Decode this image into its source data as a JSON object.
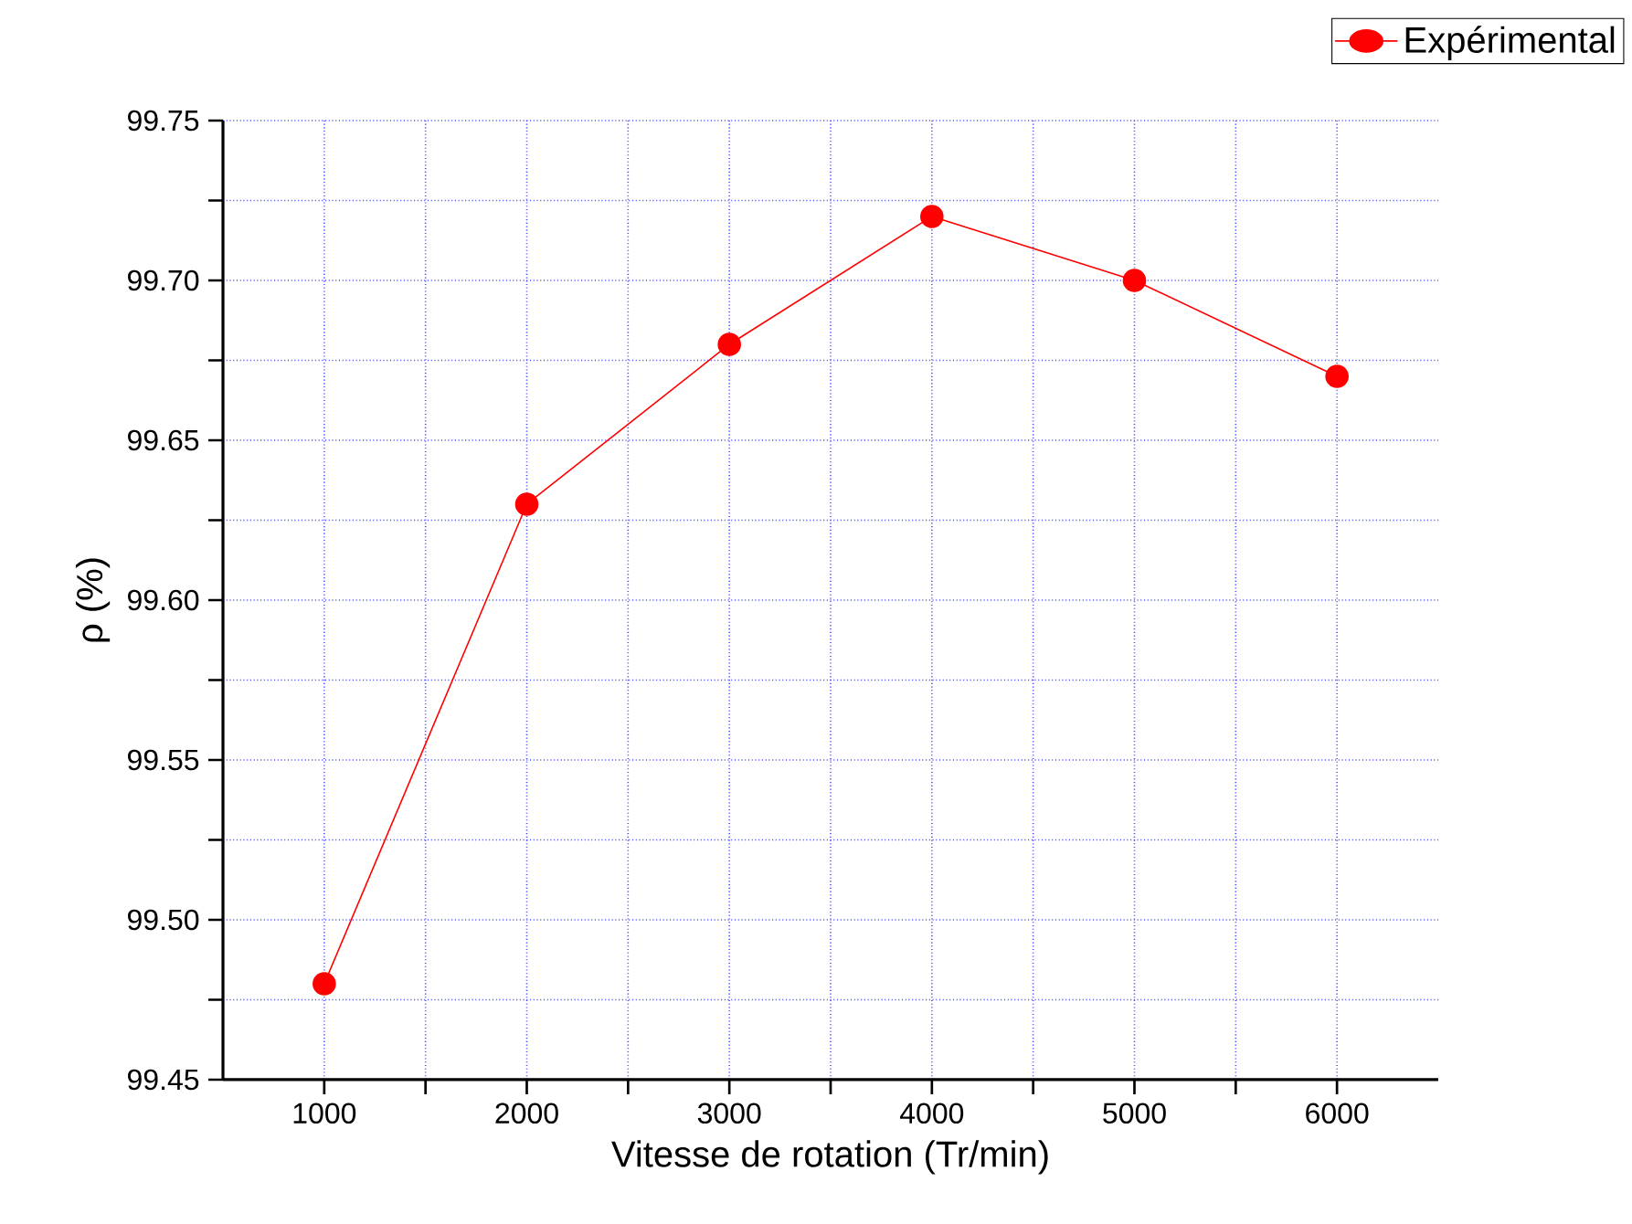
{
  "chart_data": {
    "type": "line",
    "xlabel": "Vitesse de rotation (Tr/min)",
    "ylabel": "ρ (%)",
    "x": [
      1000,
      2000,
      3000,
      4000,
      5000,
      6000
    ],
    "series": [
      {
        "name": "Expérimental",
        "color": "#ff0000",
        "values": [
          99.48,
          99.63,
          99.68,
          99.72,
          99.7,
          99.67
        ]
      }
    ],
    "xlim": [
      500,
      6500
    ],
    "xticks": [
      1000,
      {
        "value": 1500,
        "label": null
      },
      2000,
      {
        "value": 2500,
        "label": null
      },
      3000,
      {
        "value": 3500,
        "label": null
      },
      4000,
      {
        "value": 4500,
        "label": null
      },
      5000,
      {
        "value": 5500,
        "label": null
      },
      6000
    ],
    "ylim": [
      99.45,
      99.75
    ],
    "yticks": [
      {
        "value": 99.45,
        "label": "99.45"
      },
      {
        "value": 99.475,
        "label": null
      },
      {
        "value": 99.5,
        "label": "99.50"
      },
      {
        "value": 99.525,
        "label": null
      },
      {
        "value": 99.55,
        "label": "99.55"
      },
      {
        "value": 99.575,
        "label": null
      },
      {
        "value": 99.6,
        "label": "99.60"
      },
      {
        "value": 99.625,
        "label": null
      },
      {
        "value": 99.65,
        "label": "99.65"
      },
      {
        "value": 99.675,
        "label": null
      },
      {
        "value": 99.7,
        "label": "99.70"
      },
      {
        "value": 99.725,
        "label": null
      },
      {
        "value": 99.75,
        "label": "99.75"
      }
    ],
    "grid": true,
    "legend": "top right",
    "marker": "circle",
    "line_style": "solid"
  }
}
